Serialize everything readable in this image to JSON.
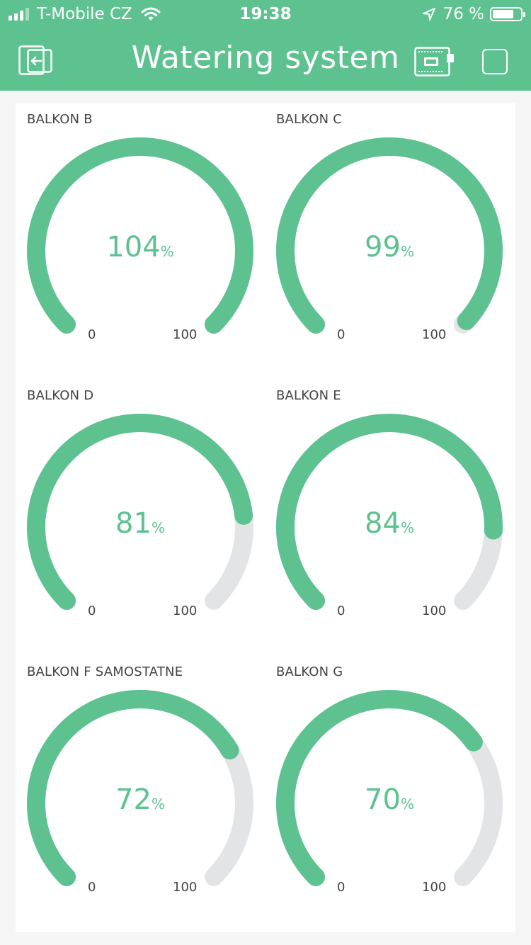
{
  "status_bar": {
    "carrier": "T-Mobile CZ",
    "time": "19:38",
    "battery": "76 %",
    "battery_level": 0.76
  },
  "header": {
    "title": "Watering system"
  },
  "colors": {
    "accent": "#5ec290",
    "track": "#e3e4e6"
  },
  "gauges": [
    {
      "label": "BALKON B",
      "value": "104",
      "unit": "%",
      "min": "0",
      "max": "100",
      "level": 104
    },
    {
      "label": "BALKON C",
      "value": "99",
      "unit": "%",
      "min": "0",
      "max": "100",
      "level": 99
    },
    {
      "label": "BALKON D",
      "value": "81",
      "unit": "%",
      "min": "0",
      "max": "100",
      "level": 81
    },
    {
      "label": "BALKON E",
      "value": "84",
      "unit": "%",
      "min": "0",
      "max": "100",
      "level": 84
    },
    {
      "label": "BALKON F SAMOSTATNE",
      "value": "72",
      "unit": "%",
      "min": "0",
      "max": "100",
      "level": 72
    },
    {
      "label": "BALKON G",
      "value": "70",
      "unit": "%",
      "min": "0",
      "max": "100",
      "level": 70
    }
  ]
}
